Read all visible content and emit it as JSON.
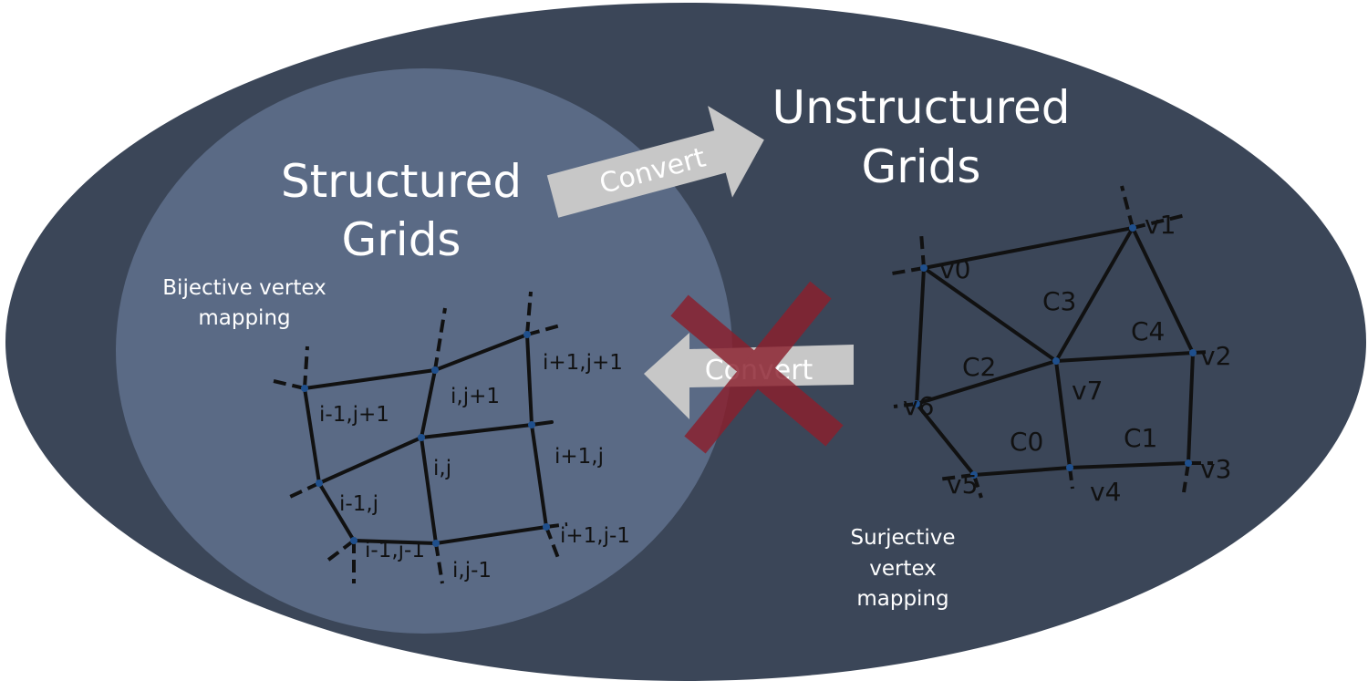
{
  "diagram": {
    "structured_title_1": "Structured",
    "structured_title_2": "Grids",
    "unstructured_title_1": "Unstructured",
    "unstructured_title_2": "Grids",
    "bijective_1": "Bijective vertex",
    "bijective_2": "mapping",
    "surjective_1": "Surjective",
    "surjective_2": "vertex",
    "surjective_3": "mapping",
    "convert_forward": "Convert",
    "convert_backward": "Convert",
    "colors": {
      "outer_ellipse": "#3b4658",
      "inner_circle": "#5a6a85",
      "arrow": "#c7c7c7",
      "cross": "#8b1f2d",
      "node": "#1f4f8c"
    },
    "structured_labels": {
      "im1_jp1": "i-1,j+1",
      "i_jp1": "i,j+1",
      "ip1_jp1": "i+1,j+1",
      "i_j": "i,j",
      "ip1_j": "i+1,j",
      "im1_j": "i-1,j",
      "im1_jm1": "i-1,j-1",
      "i_jm1": "i,j-1",
      "ip1_jm1": "i+1,j-1"
    },
    "unstructured_labels": {
      "v0": "v0",
      "v1": "v1",
      "v2": "v2",
      "v3": "v3",
      "v4": "v4",
      "v5": "v5",
      "v6": "v6",
      "v7": "v7",
      "c0": "C0",
      "c1": "C1",
      "c2": "C2",
      "c3": "C3",
      "c4": "C4"
    }
  }
}
